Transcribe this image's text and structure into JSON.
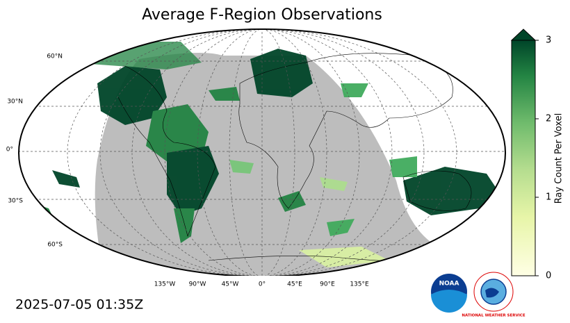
{
  "title": "Average F-Region Observations",
  "timestamp": "2025-07-05 01:35Z",
  "map": {
    "lat_labels": [
      "60°N",
      "30°N",
      "0°",
      "30°S",
      "60°S"
    ],
    "lon_labels": [
      "135°W",
      "90°W",
      "45°W",
      "0°",
      "45°E",
      "90°E",
      "135°E"
    ]
  },
  "colorbar": {
    "label": "Ray Count Per Voxel",
    "lim": [
      0,
      3
    ],
    "ticks": [
      0,
      1,
      2,
      3
    ]
  },
  "logos": {
    "noaa": "NOAA",
    "nws": "NATIONAL WEATHER SERVICE"
  }
}
